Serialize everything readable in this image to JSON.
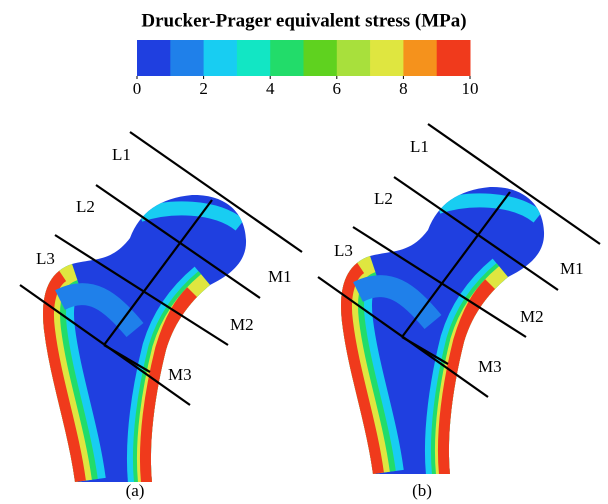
{
  "colorbar": {
    "title": "Drucker-Prager equivalent stress (MPa)",
    "lim": [
      0,
      10
    ],
    "ticks": [
      0,
      2,
      4,
      6,
      8,
      10
    ],
    "colors": [
      "#1f3fe0",
      "#1f80ea",
      "#18cdf2",
      "#12e6c4",
      "#22dc6a",
      "#5fd21f",
      "#a8e03c",
      "#dfe640",
      "#f5921c",
      "#f03a1c"
    ]
  },
  "panels": [
    {
      "caption": "(a)",
      "lines": [
        "L1",
        "L2",
        "L3"
      ],
      "sections": [
        "M1",
        "M2",
        "M3"
      ]
    },
    {
      "caption": "(b)",
      "lines": [
        "L1",
        "L2",
        "L3"
      ],
      "sections": [
        "M1",
        "M2",
        "M3"
      ]
    }
  ]
}
